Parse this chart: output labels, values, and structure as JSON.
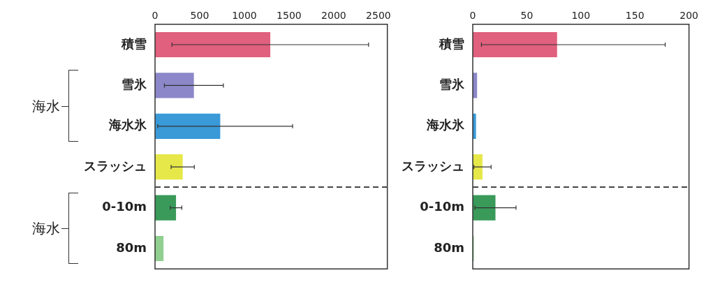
{
  "chart_data": [
    {
      "type": "bar",
      "orientation": "horizontal",
      "categories": [
        "積雪",
        "雪氷",
        "海水氷",
        "スラッシュ",
        "0-10m",
        "80m"
      ],
      "values": [
        1290,
        435,
        730,
        310,
        235,
        95
      ],
      "errors": [
        1100,
        330,
        [
          30,
          1540
        ],
        130,
        65,
        null
      ],
      "colors": [
        "#e0607e",
        "#8c87c8",
        "#3a9ad8",
        "#e6e84a",
        "#3a9a5a",
        "#90cf90"
      ],
      "xlim": [
        0,
        2600
      ],
      "xticks": [
        0,
        500,
        1000,
        1500,
        2000,
        2500
      ],
      "grid": false,
      "annotations": [
        "海水",
        "海水"
      ]
    },
    {
      "type": "bar",
      "orientation": "horizontal",
      "categories": [
        "積雪",
        "雪氷",
        "海水氷",
        "スラッシュ",
        "0-10m",
        "80m"
      ],
      "values": [
        78,
        4,
        3,
        9,
        21,
        1
      ],
      "errors": [
        [
          8,
          178
        ],
        null,
        null,
        8,
        19,
        null
      ],
      "colors": [
        "#e0607e",
        "#8c87c8",
        "#3a9ad8",
        "#e6e84a",
        "#3a9a5a",
        "#90cf90"
      ],
      "xlim": [
        0,
        200
      ],
      "xticks": [
        0,
        50,
        100,
        150,
        200
      ],
      "grid": false
    }
  ]
}
